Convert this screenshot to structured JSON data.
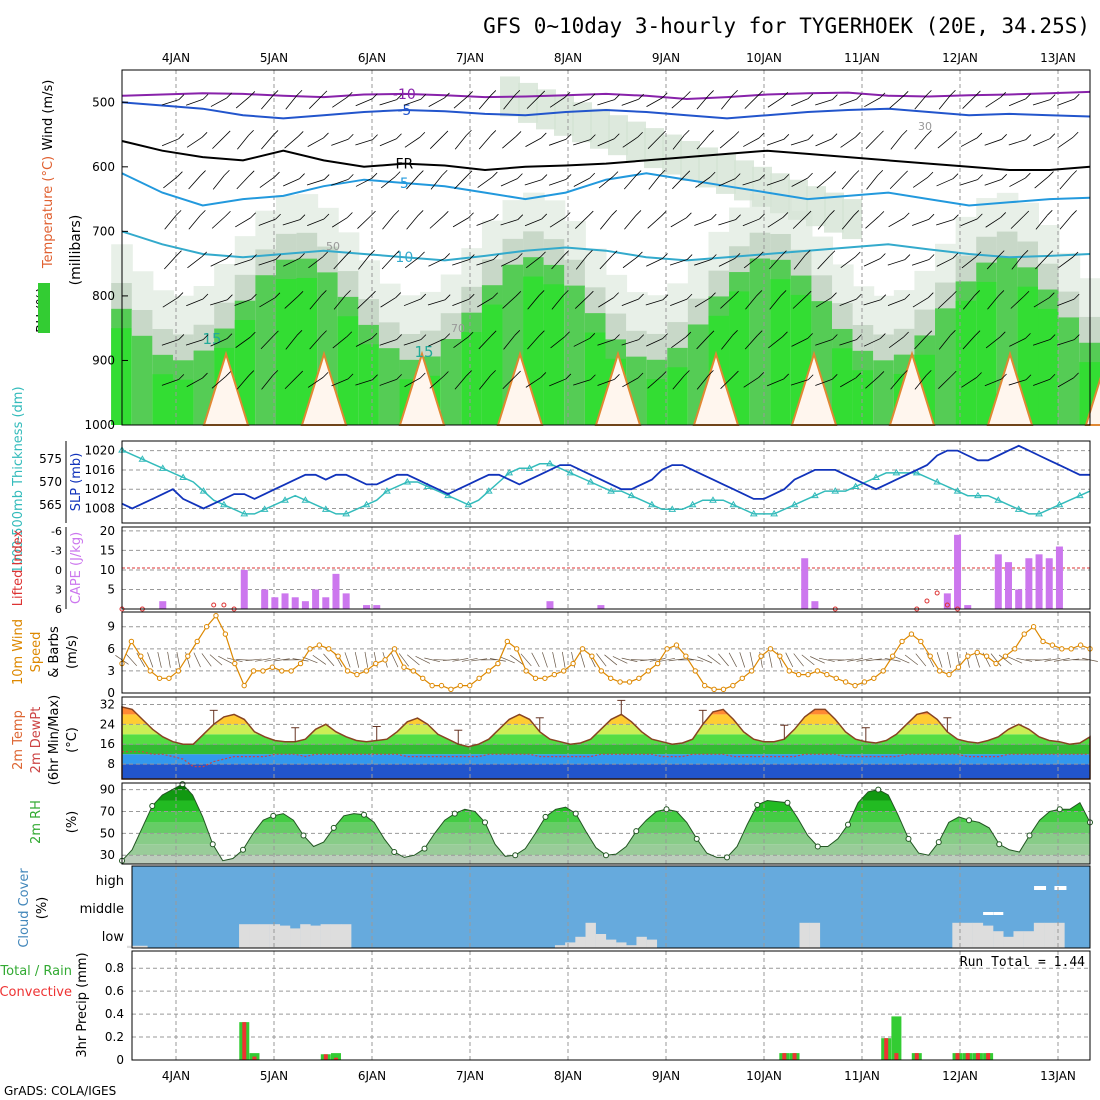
{
  "title": "GFS 0~10day 3-hourly for TYGERHOEK (20E, 34.25S)",
  "footer": "GrADS: COLA/IGES",
  "colors": {
    "rh_green": "#33cc33",
    "temp": "#e06030",
    "cape": "#cc77ee",
    "thickness": "#33bbbb",
    "slp": "#1133bb",
    "wind": "#dd8800",
    "sky": "#66aadd",
    "cloud": "#dddddd"
  },
  "days": [
    "4JAN",
    "5JAN",
    "6JAN",
    "7JAN",
    "8JAN",
    "9JAN",
    "10JAN",
    "11JAN",
    "12JAN",
    "13JAN"
  ],
  "chart_data": [
    {
      "type": "heatmap",
      "name": "upper-air",
      "axis_labels": [
        "Wind (m/s)",
        "Temperature (°C)",
        "RH (%)",
        "(millibars)"
      ],
      "y_ticks": [
        500,
        600,
        700,
        800,
        900,
        1000
      ],
      "contour_labels": [
        "-10",
        "-5",
        "FR",
        "5",
        "10",
        "15",
        "30",
        "50",
        "70"
      ],
      "temperature_lines": {
        "-10": [
          490,
          488,
          486,
          487,
          490,
          492,
          488,
          487,
          489,
          492,
          491,
          489,
          487,
          490,
          495,
          492,
          488,
          486,
          485,
          490,
          491,
          489,
          488,
          486,
          484
        ],
        "-5": [
          500,
          505,
          510,
          520,
          525,
          520,
          515,
          512,
          514,
          518,
          520,
          515,
          512,
          515,
          520,
          525,
          520,
          515,
          512,
          510,
          515,
          520,
          518,
          520,
          522
        ],
        "FR": [
          560,
          575,
          585,
          590,
          575,
          590,
          600,
          595,
          598,
          605,
          600,
          598,
          595,
          590,
          585,
          580,
          575,
          580,
          585,
          590,
          595,
          600,
          605,
          605,
          600
        ],
        "5": [
          610,
          640,
          660,
          650,
          645,
          630,
          620,
          625,
          630,
          640,
          650,
          640,
          620,
          610,
          620,
          630,
          640,
          650,
          645,
          640,
          650,
          660,
          655,
          650,
          648
        ],
        "10": [
          700,
          720,
          735,
          740,
          735,
          730,
          735,
          740,
          745,
          738,
          730,
          725,
          730,
          740,
          745,
          740,
          735,
          730,
          725,
          720,
          728,
          735,
          740,
          738,
          735
        ]
      }
    },
    {
      "type": "line",
      "name": "thickness-slp",
      "axis_labels": [
        "1000-500mb Thickness (dm)",
        "SLP (mb)"
      ],
      "left_ticks": [
        565,
        570,
        575
      ],
      "right_ticks": [
        1008,
        1012,
        1016,
        1020
      ],
      "thickness": [
        577,
        576,
        575,
        574,
        573,
        572,
        571,
        570,
        568,
        566,
        565,
        564,
        563,
        563,
        564,
        565,
        566,
        567,
        566,
        565,
        564,
        563,
        563,
        564,
        565,
        566,
        568,
        569,
        570,
        570,
        569,
        568,
        567,
        566,
        565,
        566,
        568,
        570,
        572,
        573,
        573,
        574,
        574,
        573,
        572,
        571,
        570,
        569,
        568,
        568,
        567,
        566,
        565,
        564,
        564,
        564,
        565,
        566,
        566,
        566,
        565,
        564,
        563,
        563,
        563,
        564,
        565,
        566,
        567,
        568,
        568,
        568,
        569,
        570,
        571,
        572,
        572,
        572,
        572,
        571,
        570,
        569,
        568,
        567,
        567,
        567,
        566,
        565,
        564,
        563,
        563,
        564,
        565,
        566,
        567,
        568
      ],
      "slp": [
        1009,
        1008,
        1009,
        1010,
        1011,
        1012,
        1010,
        1009,
        1008,
        1009,
        1010,
        1011,
        1011,
        1010,
        1011,
        1012,
        1013,
        1014,
        1015,
        1015,
        1014,
        1015,
        1015,
        1014,
        1013,
        1013,
        1014,
        1015,
        1015,
        1014,
        1013,
        1012,
        1011,
        1012,
        1013,
        1014,
        1015,
        1015,
        1014,
        1013,
        1014,
        1015,
        1016,
        1017,
        1017,
        1016,
        1015,
        1014,
        1013,
        1012,
        1012,
        1013,
        1014,
        1016,
        1017,
        1017,
        1016,
        1015,
        1014,
        1013,
        1012,
        1011,
        1010,
        1010,
        1011,
        1012,
        1014,
        1015,
        1016,
        1016,
        1016,
        1015,
        1014,
        1013,
        1012,
        1013,
        1014,
        1015,
        1016,
        1017,
        1019,
        1020,
        1020,
        1019,
        1018,
        1018,
        1019,
        1020,
        1021,
        1020,
        1019,
        1018,
        1017,
        1016,
        1015,
        1015
      ]
    },
    {
      "type": "bar",
      "name": "cape-li",
      "axis_labels": [
        "Lifted Index",
        "CAPE (J/kg)"
      ],
      "left_ticks": [
        "-6",
        "-3",
        "0",
        "3",
        "6"
      ],
      "right_ticks": [
        5,
        10,
        15,
        20
      ],
      "cape": [
        [
          4,
          2
        ],
        [
          12,
          10
        ],
        [
          14,
          5
        ],
        [
          15,
          3
        ],
        [
          16,
          4
        ],
        [
          17,
          3
        ],
        [
          18,
          2
        ],
        [
          19,
          5
        ],
        [
          20,
          3
        ],
        [
          21,
          9
        ],
        [
          22,
          4
        ],
        [
          24,
          1
        ],
        [
          25,
          1
        ],
        [
          42,
          2
        ],
        [
          47,
          1
        ],
        [
          67,
          13
        ],
        [
          68,
          2
        ],
        [
          81,
          4
        ],
        [
          82,
          19
        ],
        [
          83,
          1
        ],
        [
          86,
          14
        ],
        [
          87,
          12
        ],
        [
          88,
          5
        ],
        [
          89,
          13
        ],
        [
          90,
          14
        ],
        [
          91,
          13
        ],
        [
          92,
          16
        ]
      ],
      "li_spikes": [
        [
          0,
          6
        ],
        [
          2,
          6
        ],
        [
          9,
          5
        ],
        [
          10,
          5
        ],
        [
          11,
          6
        ],
        [
          70,
          6
        ],
        [
          78,
          6
        ],
        [
          79,
          4
        ],
        [
          80,
          2
        ],
        [
          81,
          5
        ],
        [
          82,
          6
        ]
      ]
    },
    {
      "type": "line",
      "name": "wind10m",
      "axis_labels": [
        "10m Wind",
        "Speed",
        "& Barbs",
        "(m/s)"
      ],
      "y_ticks": [
        0,
        3,
        6,
        9
      ],
      "speed": [
        4,
        7,
        5,
        3,
        2,
        2,
        3,
        5,
        7,
        9,
        10.5,
        8,
        4,
        1,
        3,
        3,
        3.5,
        3,
        3,
        4,
        6,
        6.5,
        6,
        5,
        3,
        2.5,
        3,
        4,
        4.5,
        6,
        3.5,
        3,
        2,
        1,
        1,
        0.5,
        1,
        1,
        2,
        3,
        4,
        7,
        6,
        3,
        2,
        2,
        2.5,
        3,
        4,
        6,
        5,
        3,
        2,
        1.5,
        1.5,
        2,
        3,
        4,
        6,
        6.5,
        5,
        3,
        1,
        0.5,
        0.5,
        1,
        2,
        3,
        5,
        6,
        5,
        3,
        2.5,
        2.5,
        3,
        2.5,
        2,
        1.5,
        1,
        1.5,
        2,
        3,
        5,
        7,
        8,
        7,
        5,
        3,
        2.5,
        3.5,
        5,
        5.5,
        5,
        4,
        5,
        6,
        8,
        9,
        7,
        6.5,
        6,
        6,
        6.5,
        6
      ]
    },
    {
      "type": "area",
      "name": "temp2m",
      "axis_labels": [
        "2m Temp",
        "2m DewPt",
        "(6hr Min/Max)",
        "(°C)"
      ],
      "y_ticks": [
        8,
        16,
        24,
        32
      ],
      "temp": [
        31,
        30,
        26,
        22,
        19,
        17,
        16,
        16,
        20,
        24,
        27,
        28,
        26,
        21,
        19,
        17.5,
        17,
        17,
        18,
        22,
        24,
        21,
        19,
        17.5,
        17,
        17.5,
        18,
        21,
        25,
        26.5,
        24,
        20,
        18,
        16,
        15,
        16,
        18,
        22,
        26,
        28,
        26,
        21,
        18,
        17,
        16,
        16.5,
        18,
        22,
        26,
        28,
        25,
        21,
        18,
        17,
        16,
        16.5,
        18,
        24,
        29,
        30,
        26,
        21,
        18,
        17,
        17,
        18,
        22,
        27,
        30,
        30,
        26,
        21,
        18,
        17,
        16.5,
        17.5,
        20,
        24,
        28,
        29,
        26,
        21,
        18,
        17,
        16.5,
        17.5,
        19,
        22,
        24,
        22,
        19,
        17.5,
        17,
        16,
        16.5,
        19
      ],
      "dew": [
        13,
        13,
        13,
        12,
        12,
        11,
        10,
        7,
        7,
        9,
        10,
        11,
        11,
        11,
        11,
        12,
        12,
        12,
        11,
        12,
        12,
        12,
        12,
        12,
        12,
        12,
        12,
        12,
        11,
        11,
        11,
        11,
        11,
        11,
        11,
        11,
        12,
        12,
        12,
        12,
        12,
        11,
        11,
        11,
        11,
        11,
        11,
        12,
        12,
        12,
        12,
        12,
        12,
        11,
        11,
        11,
        12,
        12,
        12,
        12,
        11,
        11,
        11,
        11,
        11,
        11,
        11,
        12,
        12,
        12,
        12,
        11,
        11,
        11,
        11,
        11,
        11,
        12,
        12,
        12,
        12,
        12,
        12,
        11,
        11,
        11,
        11,
        12,
        12,
        12,
        12,
        12,
        12,
        12,
        12,
        12
      ]
    },
    {
      "type": "area",
      "name": "rh2m",
      "axis_labels": [
        "2m RH",
        "(%)"
      ],
      "y_ticks": [
        30,
        50,
        70,
        90
      ],
      "rh": [
        25,
        35,
        55,
        75,
        85,
        90,
        95,
        85,
        65,
        40,
        25,
        27,
        35,
        50,
        62,
        66,
        68,
        62,
        48,
        38,
        42,
        55,
        66,
        68,
        67,
        60,
        45,
        33,
        28,
        30,
        36,
        50,
        62,
        68,
        72,
        70,
        60,
        40,
        29,
        30,
        36,
        50,
        65,
        72,
        74,
        68,
        52,
        37,
        30,
        31,
        38,
        52,
        62,
        70,
        72,
        70,
        60,
        45,
        32,
        28,
        28,
        38,
        58,
        76,
        80,
        79,
        78,
        64,
        48,
        38,
        38,
        45,
        58,
        78,
        88,
        90,
        85,
        66,
        45,
        32,
        30,
        42,
        60,
        65,
        62,
        60,
        55,
        40,
        35,
        33,
        48,
        62,
        70,
        72,
        72,
        78,
        60
      ]
    },
    {
      "type": "bar",
      "name": "cloud",
      "axis_labels": [
        "Cloud Cover",
        "(%)"
      ],
      "y_ticks": [
        "high",
        "middle",
        "low"
      ],
      "low": [
        [
          1,
          8
        ],
        [
          2,
          8
        ],
        [
          12,
          85
        ],
        [
          13,
          85
        ],
        [
          14,
          85
        ],
        [
          15,
          85
        ],
        [
          16,
          80
        ],
        [
          17,
          70
        ],
        [
          18,
          85
        ],
        [
          19,
          80
        ],
        [
          20,
          85
        ],
        [
          21,
          85
        ],
        [
          22,
          85
        ],
        [
          43,
          10
        ],
        [
          44,
          20
        ],
        [
          45,
          40
        ],
        [
          46,
          90
        ],
        [
          47,
          50
        ],
        [
          48,
          30
        ],
        [
          49,
          20
        ],
        [
          50,
          10
        ],
        [
          51,
          40
        ],
        [
          52,
          30
        ],
        [
          67,
          90
        ],
        [
          68,
          90
        ],
        [
          82,
          90
        ],
        [
          83,
          90
        ],
        [
          84,
          90
        ],
        [
          85,
          80
        ],
        [
          86,
          60
        ],
        [
          87,
          40
        ],
        [
          88,
          60
        ],
        [
          89,
          60
        ],
        [
          90,
          90
        ],
        [
          91,
          90
        ],
        [
          92,
          90
        ]
      ],
      "mid": [
        [
          85,
          10
        ],
        [
          86,
          10
        ]
      ],
      "high": [
        [
          90,
          5
        ],
        [
          92,
          25
        ]
      ]
    },
    {
      "type": "bar",
      "name": "precip3h",
      "axis_labels": [
        "Total / Rain",
        "Convective",
        "3hr Precip (mm)"
      ],
      "y_ticks": [
        0,
        0.2,
        0.4,
        0.6,
        0.8
      ],
      "annotation": "Run Total = 1.44",
      "total": [
        [
          12,
          0.33,
          0.33
        ],
        [
          13,
          0.06,
          0.03
        ],
        [
          20,
          0.05,
          0.05
        ],
        [
          21,
          0.06,
          0.02
        ],
        [
          65,
          0.06,
          0.06
        ],
        [
          66,
          0.06,
          0.06
        ],
        [
          75,
          0.19,
          0.19
        ],
        [
          76,
          0.38,
          0.06
        ],
        [
          78,
          0.06,
          0.06
        ],
        [
          82,
          0.06,
          0.06
        ],
        [
          83,
          0.06,
          0.06
        ],
        [
          84,
          0.06,
          0.06
        ],
        [
          85,
          0.06,
          0.06
        ]
      ]
    }
  ]
}
